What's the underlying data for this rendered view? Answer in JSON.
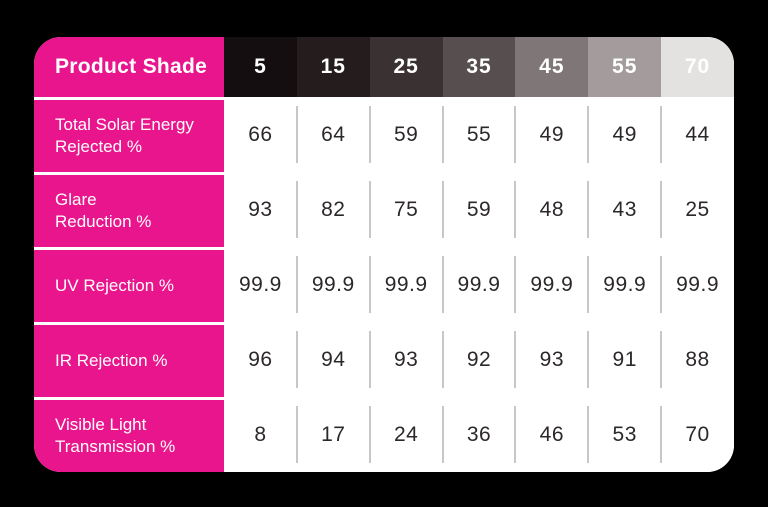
{
  "table": {
    "header": {
      "label": "Product Shade",
      "shades": [
        {
          "value": "5",
          "bg": "#140e10"
        },
        {
          "value": "15",
          "bg": "#251c1e"
        },
        {
          "value": "25",
          "bg": "#3a3133"
        },
        {
          "value": "35",
          "bg": "#574e50"
        },
        {
          "value": "45",
          "bg": "#7f7678"
        },
        {
          "value": "55",
          "bg": "#a39b9c"
        },
        {
          "value": "70",
          "bg": "#e4e2e1"
        }
      ]
    },
    "rows": [
      {
        "label": "Total Solar Energy\nRejected %",
        "values": [
          "66",
          "64",
          "59",
          "55",
          "49",
          "49",
          "44"
        ]
      },
      {
        "label": "Glare\nReduction %",
        "values": [
          "93",
          "82",
          "75",
          "59",
          "48",
          "43",
          "25"
        ]
      },
      {
        "label": "UV Rejection %",
        "values": [
          "99.9",
          "99.9",
          "99.9",
          "99.9",
          "99.9",
          "99.9",
          "99.9"
        ]
      },
      {
        "label": "IR Rejection %",
        "values": [
          "96",
          "94",
          "93",
          "92",
          "93",
          "91",
          "88"
        ]
      },
      {
        "label": "Visible Light\nTransmission %",
        "values": [
          "8",
          "17",
          "24",
          "36",
          "46",
          "53",
          "70"
        ]
      }
    ],
    "colors": {
      "pink": "#e9158c",
      "value_text": "#2c282a",
      "separator": "#c7c7c7",
      "page_background": "#000000",
      "table_background": "#ffffff",
      "header_text": "#ffffff",
      "label_text": "#ffffff"
    }
  },
  "chart_data": {
    "type": "table",
    "title": "Product Shade",
    "columns": [
      "5",
      "15",
      "25",
      "35",
      "45",
      "55",
      "70"
    ],
    "rows": [
      {
        "label": "Total Solar Energy Rejected %",
        "values": [
          66,
          64,
          59,
          55,
          49,
          49,
          44
        ]
      },
      {
        "label": "Glare Reduction %",
        "values": [
          93,
          82,
          75,
          59,
          48,
          43,
          25
        ]
      },
      {
        "label": "UV Rejection %",
        "values": [
          99.9,
          99.9,
          99.9,
          99.9,
          99.9,
          99.9,
          99.9
        ]
      },
      {
        "label": "IR Rejection %",
        "values": [
          96,
          94,
          93,
          92,
          93,
          91,
          88
        ]
      },
      {
        "label": "Visible Light Transmission %",
        "values": [
          8,
          17,
          24,
          36,
          46,
          53,
          70
        ]
      }
    ],
    "layout_hints": {
      "header_swatches": "shade darkness decreases left to right, from near-black (5) to light gray (70)",
      "grid": "vertical separators between value columns only, white gaps between pink label rows"
    }
  }
}
